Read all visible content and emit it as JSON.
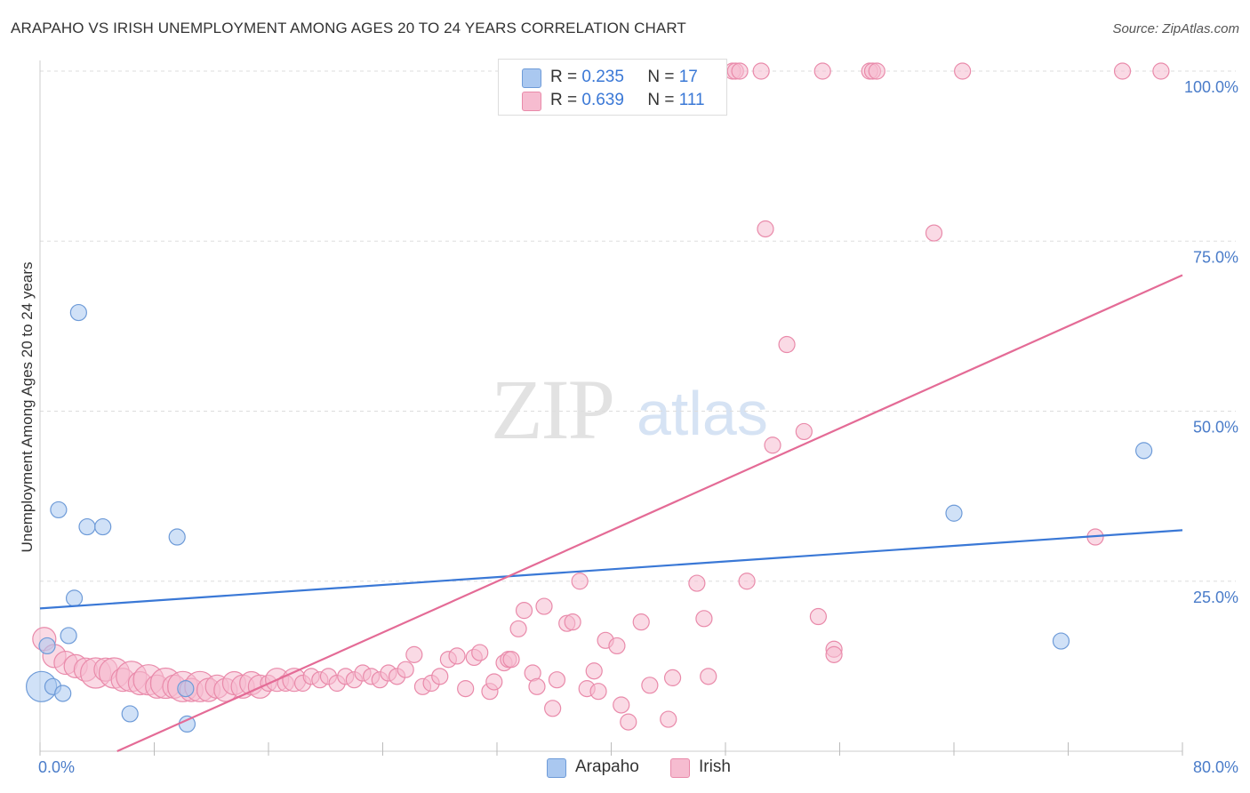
{
  "title": "ARAPAHO VS IRISH UNEMPLOYMENT AMONG AGES 20 TO 24 YEARS CORRELATION CHART",
  "source": "Source: ZipAtlas.com",
  "watermark": {
    "zip": "ZIP",
    "atlas": "atlas"
  },
  "legend_top": {
    "r_label": "R =",
    "n_label": "N =",
    "rows": [
      {
        "series": "Arapaho",
        "r": "0.235",
        "n": "17"
      },
      {
        "series": "Irish",
        "r": "0.639",
        "n": "111"
      }
    ]
  },
  "colors": {
    "arapaho_fill": "#aac8f0",
    "arapaho_stroke": "#6e9bd8",
    "arapaho_line": "#3a78d6",
    "irish_fill": "#f6bcd0",
    "irish_stroke": "#e98aaa",
    "irish_line": "#e46b96",
    "grid": "#dddddd",
    "tick_text": "#4a7cc9"
  },
  "chart_data": {
    "type": "scatter",
    "title": "ARAPAHO VS IRISH UNEMPLOYMENT AMONG AGES 20 TO 24 YEARS CORRELATION CHART",
    "xlabel": "",
    "ylabel": "Unemployment Among Ages 20 to 24 years",
    "xlim": [
      0,
      80
    ],
    "ylim": [
      0,
      100
    ],
    "x_tick_labels": [
      "0.0%",
      "80.0%"
    ],
    "y_tick_labels": [
      "25.0%",
      "50.0%",
      "75.0%",
      "100.0%"
    ],
    "y_tick_values": [
      25,
      50,
      75,
      100
    ],
    "grid": true,
    "legend_position": "bottom",
    "series": [
      {
        "name": "Arapaho",
        "trend": {
          "x": [
            0,
            80
          ],
          "y": [
            21,
            32.5
          ]
        },
        "points": [
          {
            "x": 0.1,
            "y": 9.5,
            "s": 3
          },
          {
            "x": 0.5,
            "y": 15.5,
            "s": 1
          },
          {
            "x": 0.9,
            "y": 9.5,
            "s": 1
          },
          {
            "x": 1.3,
            "y": 35.5,
            "s": 1
          },
          {
            "x": 1.6,
            "y": 8.5,
            "s": 1
          },
          {
            "x": 2.0,
            "y": 17,
            "s": 1
          },
          {
            "x": 2.4,
            "y": 22.5,
            "s": 1
          },
          {
            "x": 2.7,
            "y": 64.5,
            "s": 1
          },
          {
            "x": 3.3,
            "y": 33,
            "s": 1
          },
          {
            "x": 4.4,
            "y": 33,
            "s": 1
          },
          {
            "x": 6.3,
            "y": 5.5,
            "s": 1
          },
          {
            "x": 9.6,
            "y": 31.5,
            "s": 1
          },
          {
            "x": 10.2,
            "y": 9.2,
            "s": 1
          },
          {
            "x": 10.3,
            "y": 4.0,
            "s": 1
          },
          {
            "x": 64,
            "y": 35,
            "s": 1
          },
          {
            "x": 71.5,
            "y": 16.2,
            "s": 1
          },
          {
            "x": 77.3,
            "y": 44.2,
            "s": 1
          }
        ]
      },
      {
        "name": "Irish",
        "trend": {
          "x": [
            5.4,
            80
          ],
          "y": [
            0,
            70
          ]
        },
        "points": [
          {
            "x": 0.3,
            "y": 16.5,
            "s": 2
          },
          {
            "x": 1.0,
            "y": 14,
            "s": 2
          },
          {
            "x": 1.8,
            "y": 13,
            "s": 2
          },
          {
            "x": 2.5,
            "y": 12.5,
            "s": 2
          },
          {
            "x": 3.2,
            "y": 12,
            "s": 2
          },
          {
            "x": 3.9,
            "y": 11.5,
            "s": 3
          },
          {
            "x": 4.6,
            "y": 12,
            "s": 2
          },
          {
            "x": 5.2,
            "y": 11.5,
            "s": 3
          },
          {
            "x": 5.8,
            "y": 10.5,
            "s": 2
          },
          {
            "x": 6.4,
            "y": 11,
            "s": 3
          },
          {
            "x": 7.0,
            "y": 10,
            "s": 2
          },
          {
            "x": 7.6,
            "y": 10.5,
            "s": 3
          },
          {
            "x": 8.2,
            "y": 9.5,
            "s": 2
          },
          {
            "x": 8.8,
            "y": 10,
            "s": 3
          },
          {
            "x": 9.4,
            "y": 9.5,
            "s": 2
          },
          {
            "x": 10.0,
            "y": 9.5,
            "s": 3
          },
          {
            "x": 10.6,
            "y": 9,
            "s": 2
          },
          {
            "x": 11.2,
            "y": 9.5,
            "s": 3
          },
          {
            "x": 11.8,
            "y": 9,
            "s": 2
          },
          {
            "x": 12.4,
            "y": 9.5,
            "s": 2
          },
          {
            "x": 13.0,
            "y": 9,
            "s": 2
          },
          {
            "x": 13.6,
            "y": 10,
            "s": 2
          },
          {
            "x": 14.2,
            "y": 9.5,
            "s": 2
          },
          {
            "x": 14.8,
            "y": 10,
            "s": 2
          },
          {
            "x": 15.4,
            "y": 9.5,
            "s": 2
          },
          {
            "x": 16.0,
            "y": 10,
            "s": 1
          },
          {
            "x": 16.6,
            "y": 10.5,
            "s": 2
          },
          {
            "x": 17.2,
            "y": 10,
            "s": 1
          },
          {
            "x": 17.8,
            "y": 10.5,
            "s": 2
          },
          {
            "x": 18.4,
            "y": 10,
            "s": 1
          },
          {
            "x": 19.0,
            "y": 11,
            "s": 1
          },
          {
            "x": 19.6,
            "y": 10.5,
            "s": 1
          },
          {
            "x": 20.2,
            "y": 11,
            "s": 1
          },
          {
            "x": 20.8,
            "y": 10,
            "s": 1
          },
          {
            "x": 21.4,
            "y": 11,
            "s": 1
          },
          {
            "x": 22.0,
            "y": 10.5,
            "s": 1
          },
          {
            "x": 22.6,
            "y": 11.5,
            "s": 1
          },
          {
            "x": 23.2,
            "y": 11,
            "s": 1
          },
          {
            "x": 23.8,
            "y": 10.5,
            "s": 1
          },
          {
            "x": 24.4,
            "y": 11.5,
            "s": 1
          },
          {
            "x": 25.0,
            "y": 11,
            "s": 1
          },
          {
            "x": 25.6,
            "y": 12,
            "s": 1
          },
          {
            "x": 26.2,
            "y": 14.2,
            "s": 1
          },
          {
            "x": 26.8,
            "y": 9.5,
            "s": 1
          },
          {
            "x": 27.4,
            "y": 10,
            "s": 1
          },
          {
            "x": 28.0,
            "y": 11,
            "s": 1
          },
          {
            "x": 28.6,
            "y": 13.5,
            "s": 1
          },
          {
            "x": 29.2,
            "y": 14,
            "s": 1
          },
          {
            "x": 29.8,
            "y": 9.2,
            "s": 1
          },
          {
            "x": 30.4,
            "y": 13.8,
            "s": 1
          },
          {
            "x": 30.8,
            "y": 14.5,
            "s": 1
          },
          {
            "x": 31.5,
            "y": 8.8,
            "s": 1
          },
          {
            "x": 31.8,
            "y": 10.2,
            "s": 1
          },
          {
            "x": 32.5,
            "y": 13,
            "s": 1
          },
          {
            "x": 32.8,
            "y": 13.5,
            "s": 1
          },
          {
            "x": 33.0,
            "y": 13.5,
            "s": 1
          },
          {
            "x": 33.5,
            "y": 18,
            "s": 1
          },
          {
            "x": 33.9,
            "y": 20.7,
            "s": 1
          },
          {
            "x": 34.5,
            "y": 11.5,
            "s": 1
          },
          {
            "x": 34.8,
            "y": 9.5,
            "s": 1
          },
          {
            "x": 35.3,
            "y": 21.3,
            "s": 1
          },
          {
            "x": 35.9,
            "y": 6.3,
            "s": 1
          },
          {
            "x": 36.2,
            "y": 10.5,
            "s": 1
          },
          {
            "x": 36.9,
            "y": 18.8,
            "s": 1
          },
          {
            "x": 37.3,
            "y": 19,
            "s": 1
          },
          {
            "x": 37.8,
            "y": 25,
            "s": 1
          },
          {
            "x": 38.3,
            "y": 9.2,
            "s": 1
          },
          {
            "x": 38.8,
            "y": 11.8,
            "s": 1
          },
          {
            "x": 39.1,
            "y": 8.8,
            "s": 1
          },
          {
            "x": 39.6,
            "y": 16.3,
            "s": 1
          },
          {
            "x": 40.4,
            "y": 15.5,
            "s": 1
          },
          {
            "x": 40.7,
            "y": 6.8,
            "s": 1
          },
          {
            "x": 41.2,
            "y": 4.3,
            "s": 1
          },
          {
            "x": 42.1,
            "y": 19,
            "s": 1
          },
          {
            "x": 42.7,
            "y": 9.7,
            "s": 1
          },
          {
            "x": 44.0,
            "y": 4.7,
            "s": 1
          },
          {
            "x": 44.3,
            "y": 10.8,
            "s": 1
          },
          {
            "x": 46.0,
            "y": 24.7,
            "s": 1
          },
          {
            "x": 46.5,
            "y": 19.5,
            "s": 1
          },
          {
            "x": 46.8,
            "y": 11,
            "s": 1
          },
          {
            "x": 48.5,
            "y": 100,
            "s": 1
          },
          {
            "x": 48.7,
            "y": 100,
            "s": 1
          },
          {
            "x": 49.0,
            "y": 100,
            "s": 1
          },
          {
            "x": 49.5,
            "y": 25,
            "s": 1
          },
          {
            "x": 50.5,
            "y": 100,
            "s": 1
          },
          {
            "x": 50.8,
            "y": 76.8,
            "s": 1
          },
          {
            "x": 51.3,
            "y": 45,
            "s": 1
          },
          {
            "x": 52.3,
            "y": 59.8,
            "s": 1
          },
          {
            "x": 53.5,
            "y": 47,
            "s": 1
          },
          {
            "x": 54.5,
            "y": 19.8,
            "s": 1
          },
          {
            "x": 54.8,
            "y": 100,
            "s": 1
          },
          {
            "x": 55.6,
            "y": 15,
            "s": 1
          },
          {
            "x": 55.6,
            "y": 14.2,
            "s": 1
          },
          {
            "x": 58.1,
            "y": 100,
            "s": 1
          },
          {
            "x": 58.3,
            "y": 100,
            "s": 1
          },
          {
            "x": 58.6,
            "y": 100,
            "s": 1
          },
          {
            "x": 62.6,
            "y": 76.2,
            "s": 1
          },
          {
            "x": 64.6,
            "y": 100,
            "s": 1
          },
          {
            "x": 73.9,
            "y": 31.5,
            "s": 1
          },
          {
            "x": 75.8,
            "y": 100,
            "s": 1
          },
          {
            "x": 78.5,
            "y": 100,
            "s": 1
          }
        ]
      }
    ]
  }
}
